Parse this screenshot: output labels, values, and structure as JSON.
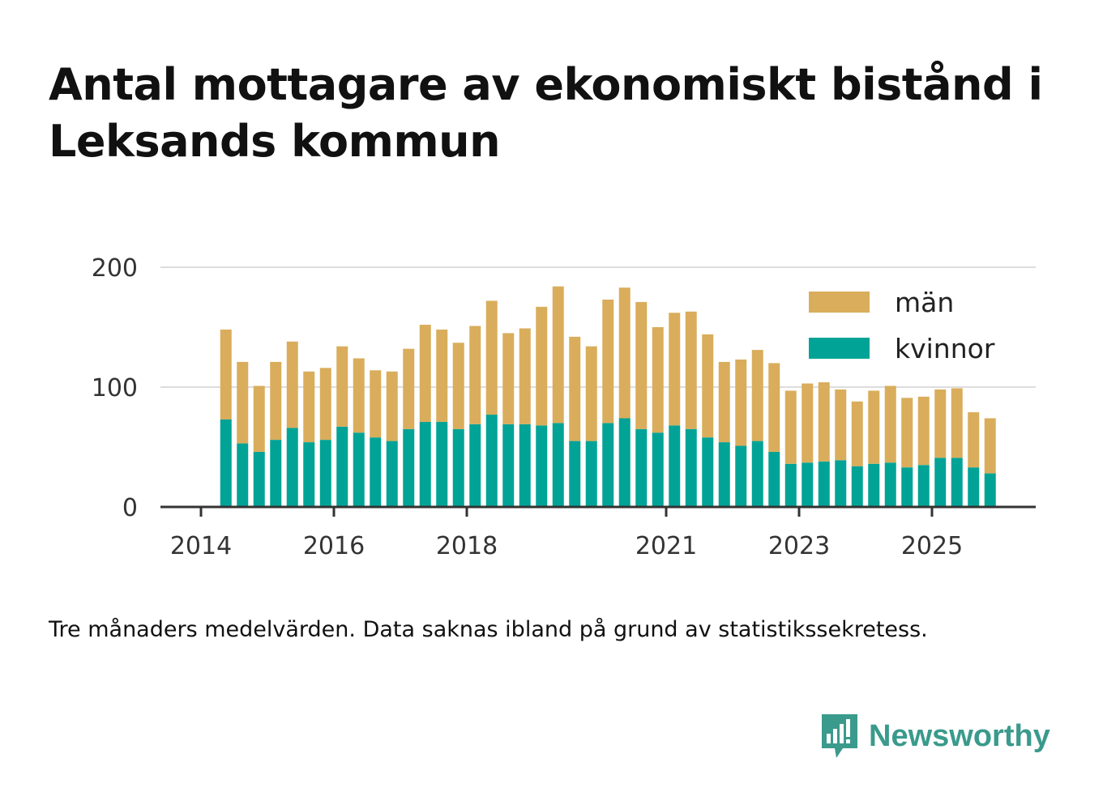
{
  "title": "Antal mottagare av ekonomiskt bistånd i Leksands kommun",
  "footnote": "Tre månaders medelvärden. Data saknas ibland på grund av statistikssekretess.",
  "brand": {
    "name": "Newsworthy",
    "icon": "newsworthy-logo-icon",
    "color": "#3a9a8c"
  },
  "colors": {
    "men": "#d9ad5b",
    "women": "#00a396",
    "grid": "#dddddd",
    "axis": "#333333"
  },
  "chart_data": {
    "type": "bar",
    "stacked": true,
    "title": "Antal mottagare av ekonomiskt bistånd i Leksands kommun",
    "ylim": [
      0,
      200
    ],
    "yticks": [
      0,
      100,
      200
    ],
    "xticks": [
      "2014",
      "2016",
      "2018",
      "2021",
      "2023",
      "2025"
    ],
    "legend": {
      "position": "top-right",
      "entries": [
        "män",
        "kvinnor"
      ]
    },
    "periods": [
      "2014 Q2",
      "2014 Q3",
      "2014 Q4",
      "2015 Q1",
      "2015 Q2",
      "2015 Q3",
      "2015 Q4",
      "2016 Q1",
      "2016 Q2",
      "2016 Q3",
      "2016 Q4",
      "2017 Q1",
      "2017 Q2",
      "2017 Q3",
      "2017 Q4",
      "2018 Q1",
      "2018 Q2",
      "2018 Q3",
      "2018 Q4",
      "2019 Q1",
      "2019 Q2",
      "2019 Q3",
      "2019 Q4",
      "2020 Q1",
      "2020 Q2",
      "2020 Q3",
      "2020 Q4",
      "2021 Q1",
      "2021 Q2",
      "2021 Q3",
      "2021 Q4",
      "2022 Q1",
      "2022 Q2",
      "2022 Q3",
      "2022 Q4",
      "2023 Q1",
      "2023 Q2",
      "2023 Q3",
      "2023 Q4",
      "2024 Q1",
      "2024 Q2",
      "2024 Q3",
      "2024 Q4",
      "2025 Q1",
      "2025 Q2",
      "2025 Q3",
      "2025 Q4"
    ],
    "series": [
      {
        "name": "kvinnor",
        "values": [
          73,
          53,
          46,
          56,
          66,
          54,
          56,
          67,
          62,
          58,
          55,
          65,
          71,
          71,
          65,
          69,
          77,
          69,
          69,
          68,
          70,
          55,
          55,
          70,
          74,
          65,
          62,
          68,
          65,
          58,
          54,
          51,
          55,
          46,
          36,
          37,
          38,
          39,
          34,
          36,
          37,
          33,
          35,
          41,
          41,
          33,
          28
        ]
      },
      {
        "name": "män",
        "values": [
          75,
          68,
          55,
          65,
          72,
          59,
          60,
          67,
          62,
          56,
          58,
          67,
          81,
          77,
          72,
          82,
          95,
          76,
          80,
          99,
          114,
          87,
          79,
          103,
          109,
          106,
          88,
          94,
          98,
          86,
          67,
          72,
          76,
          74,
          61,
          66,
          66,
          59,
          54,
          61,
          64,
          58,
          57,
          57,
          58,
          46,
          46
        ]
      }
    ]
  }
}
